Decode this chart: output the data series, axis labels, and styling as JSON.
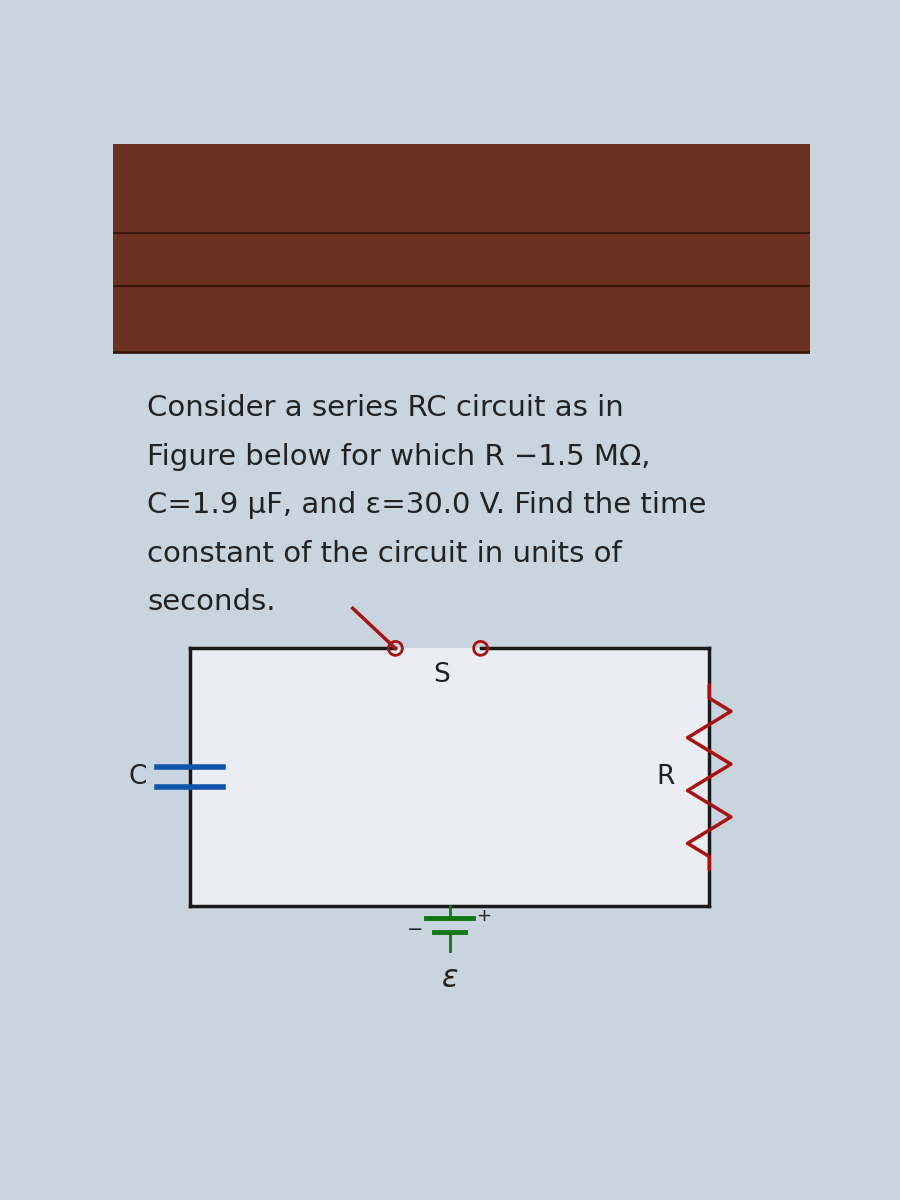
{
  "bg_main_color": "#c8d4de",
  "header_color": "#6b3020",
  "strip2_color": "#b8956a",
  "strip3_color": "#b8956a",
  "text_color": "#222222",
  "problem_text_line1": "Consider a series RC circuit as in",
  "problem_text_line2": "Figure below for which R −1.5 MΩ,",
  "problem_text_line3": "C=1.9 μF, and ε=30.0 V. Find the time",
  "problem_text_line4": "constant of the circuit in units of",
  "problem_text_line5": "seconds.",
  "circuit_bg": "#eaeef2",
  "wire_color": "#1a1a1a",
  "resistor_color": "#aa1111",
  "capacitor_color": "#1155aa",
  "battery_color": "#117711",
  "switch_color": "#aa1111",
  "label_R": "R",
  "label_C": "C",
  "label_S": "S",
  "label_eps": "ε",
  "font_size_problem": 21,
  "font_size_labels": 19
}
